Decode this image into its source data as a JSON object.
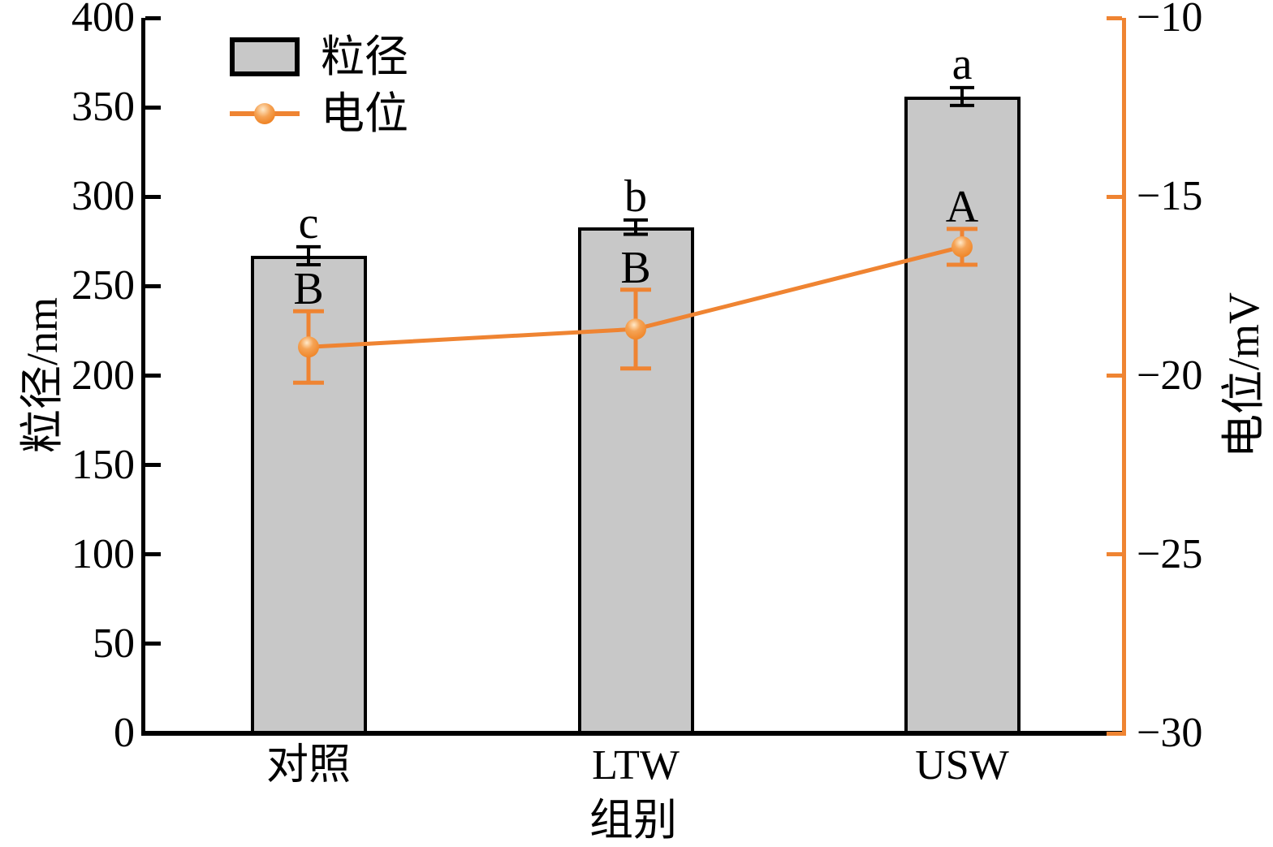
{
  "chart_data": {
    "type": "bar+line (dual y-axis)",
    "categories": [
      "对照",
      "LTW",
      "USW"
    ],
    "series": [
      {
        "name": "粒径",
        "type": "bar",
        "axis": "left",
        "values": [
          267,
          283,
          356
        ],
        "errors": [
          5,
          4,
          5
        ],
        "sig_letters": [
          "c",
          "b",
          "a"
        ],
        "fill_color": "#C8C8C8",
        "border_color": "#000000"
      },
      {
        "name": "电位",
        "type": "line",
        "axis": "right",
        "values": [
          -19.2,
          -18.7,
          -16.4
        ],
        "errors": [
          1.0,
          1.1,
          0.5
        ],
        "sig_letters": [
          "B",
          "B",
          "A"
        ],
        "color": "#EF8432",
        "marker": "ball-circle"
      }
    ],
    "left_axis": {
      "label": "粒径/nm",
      "min": 0,
      "max": 400,
      "step": 50,
      "tick_values": [
        0,
        50,
        100,
        150,
        200,
        250,
        300,
        350,
        400
      ],
      "tick_labels": [
        "0",
        "50",
        "100",
        "150",
        "200",
        "250",
        "300",
        "350",
        "400"
      ],
      "color": "#000000"
    },
    "right_axis": {
      "label": "电位/mV",
      "min": -30,
      "max": -10,
      "step": 5,
      "tick_values": [
        -10,
        -15,
        -20,
        -25,
        -30
      ],
      "tick_labels": [
        "−10",
        "−15",
        "−20",
        "−25",
        "−30"
      ],
      "spine_color": "#EF8432",
      "label_color": "#000000"
    },
    "x_axis": {
      "label": "组别"
    },
    "legend": {
      "position": "upper-left",
      "items": [
        {
          "label": "粒径",
          "swatch": "gray-bar"
        },
        {
          "label": "电位",
          "swatch": "orange-line-marker"
        }
      ]
    },
    "grid": false,
    "background": "#FFFFFF"
  }
}
